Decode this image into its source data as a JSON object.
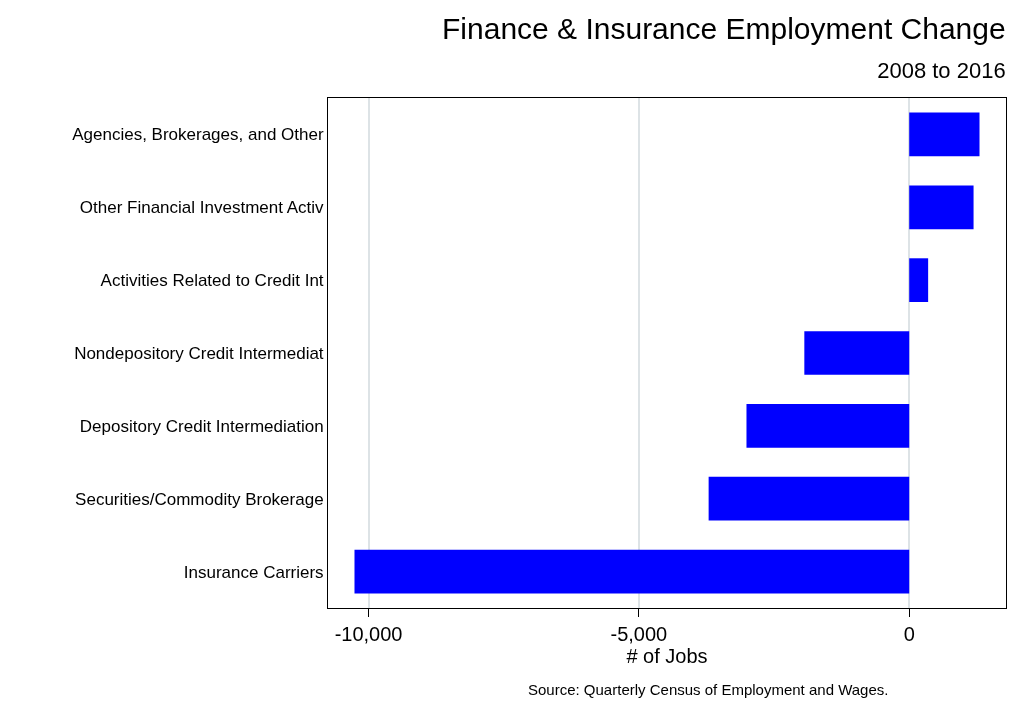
{
  "chart_data": {
    "type": "bar",
    "orientation": "horizontal",
    "title": "Finance & Insurance Employment Change",
    "subtitle": "2008 to 2016",
    "xlabel": "# of Jobs",
    "categories": [
      "Agencies, Brokerages, and Other",
      "Other Financial Investment Activ",
      "Activities Related to Credit Int",
      "Nondepository Credit Intermediat",
      "Depository Credit Intermediation",
      "Securities/Commodity Brokerage",
      "Insurance Carriers"
    ],
    "values": [
      1300,
      1190,
      350,
      -1940,
      -3010,
      -3710,
      -10260
    ],
    "color": "#0000ff",
    "xlim": [
      -10750,
      1790
    ],
    "xticks": [
      {
        "value": -10000,
        "label": "-10,000"
      },
      {
        "value": -5000,
        "label": "-5,000"
      },
      0
    ],
    "grid": "x",
    "annotations": [
      "Source: Quarterly Census of Employment and Wages."
    ]
  }
}
